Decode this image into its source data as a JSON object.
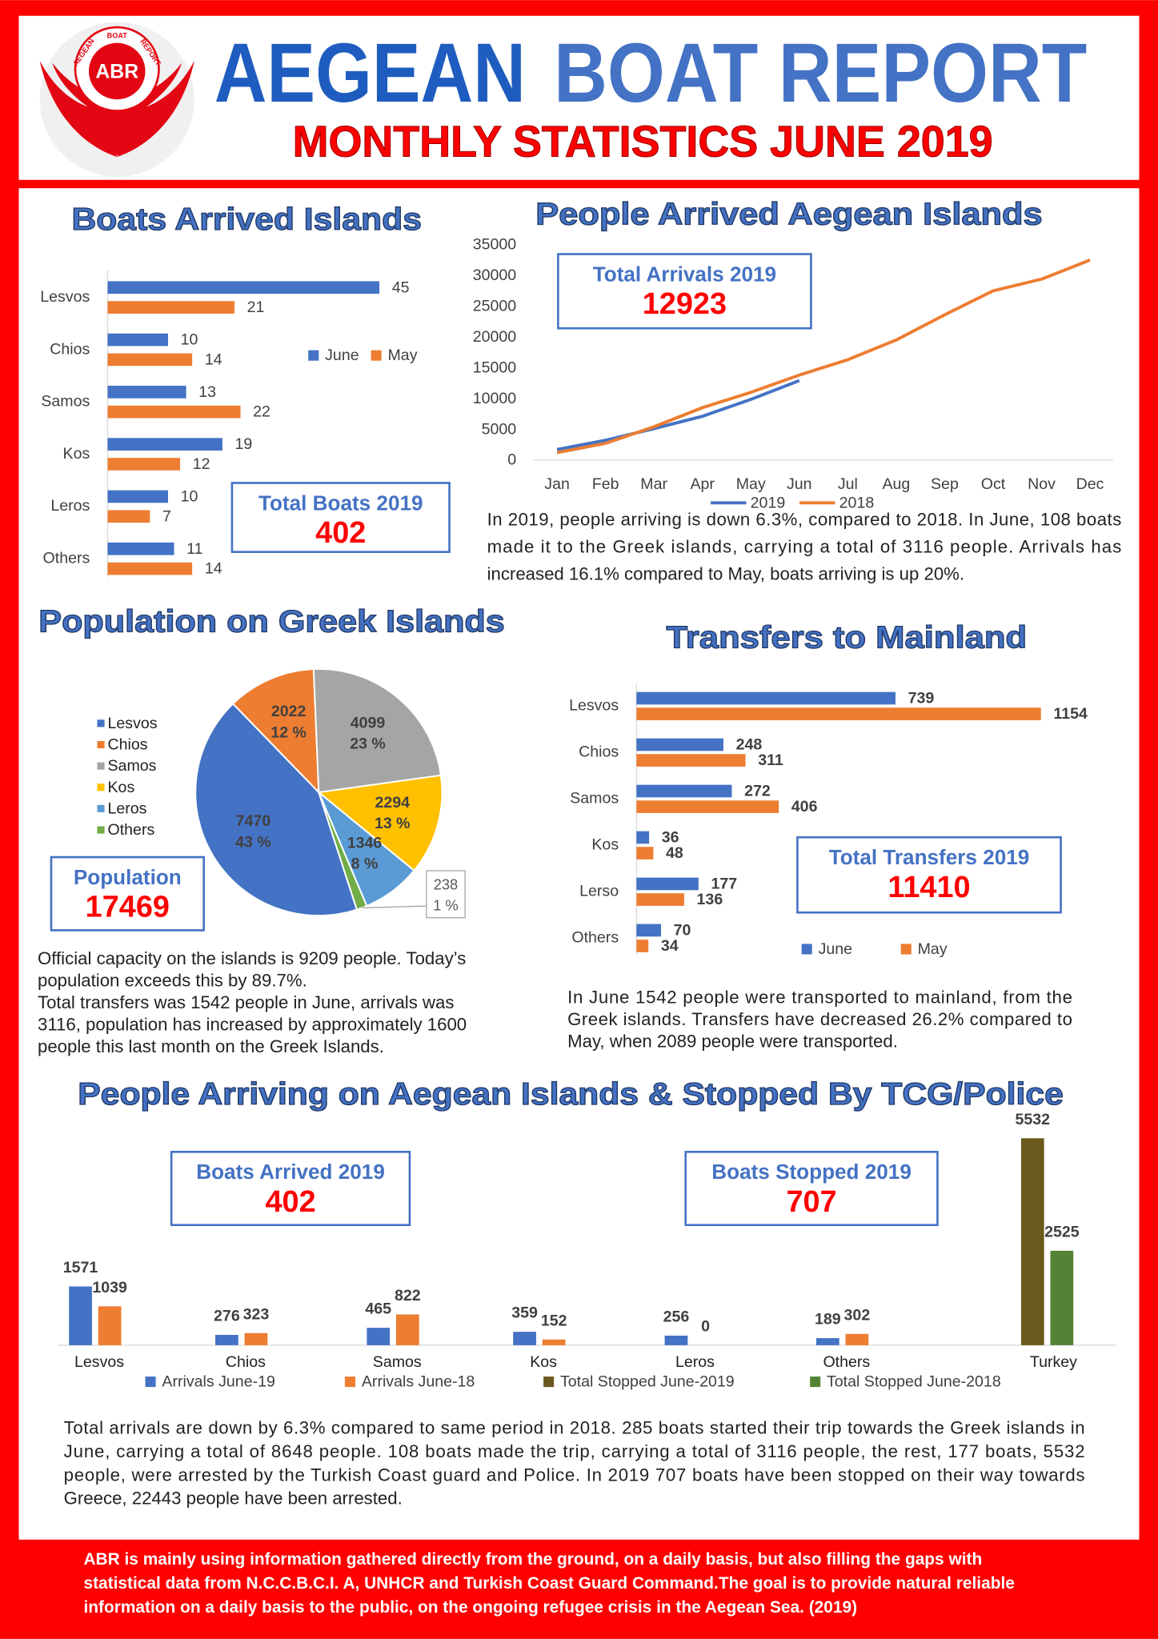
{
  "header": {
    "logo": {
      "abbr": "ABR",
      "ring": [
        "AEGEAN",
        "BOAT",
        "REPORT"
      ]
    },
    "title_main": "AEGEAN",
    "title_rest": "BOAT REPORT",
    "subtitle": "MONTHLY STATISTICS JUNE 2019"
  },
  "chart_data": [
    {
      "type": "bar",
      "orientation": "horizontal",
      "title": "Boats Arrived Islands",
      "categories": [
        "Lesvos",
        "Chios",
        "Samos",
        "Kos",
        "Leros",
        "Others"
      ],
      "series": [
        {
          "name": "June",
          "color": "#4472c4",
          "values": [
            45,
            10,
            13,
            19,
            10,
            11
          ]
        },
        {
          "name": "May",
          "color": "#ed7d31",
          "values": [
            21,
            14,
            22,
            12,
            7,
            14
          ]
        }
      ],
      "boxes": [
        {
          "label": "Total Boats 2019",
          "value": 402
        }
      ]
    },
    {
      "type": "line",
      "title": "People Arrived Aegean Islands",
      "categories": [
        "Jan",
        "Feb",
        "Mar",
        "Apr",
        "May",
        "Jun",
        "Jul",
        "Aug",
        "Sep",
        "Oct",
        "Nov",
        "Dec"
      ],
      "series": [
        {
          "name": "2019",
          "color": "#4472c4",
          "values": [
            1700,
            3200,
            5100,
            7100,
            9850,
            12900,
            null,
            null,
            null,
            null,
            null,
            null
          ]
        },
        {
          "name": "2018",
          "color": "#ed7d31",
          "values": [
            1200,
            2700,
            5400,
            8500,
            11000,
            13800,
            16300,
            19500,
            23600,
            27500,
            29400,
            32500
          ]
        }
      ],
      "ylim": [
        0,
        35000
      ],
      "yticks": [
        0,
        5000,
        10000,
        15000,
        20000,
        25000,
        30000,
        35000
      ],
      "grid": false,
      "boxes": [
        {
          "label": "Total Arrivals 2019",
          "value": 12923
        }
      ],
      "text": [
        "In 2019, people arriving is down 6.3%, compared to 2018. In June, 108 boats",
        "made it to the Greek islands, carrying a total of 3116 people. Arrivals has",
        "increased 16.1% compared to May, boats arriving is up 20%."
      ]
    },
    {
      "type": "pie",
      "title": "Population on Greek Islands",
      "categories": [
        "Lesvos",
        "Chios",
        "Samos",
        "Kos",
        "Leros",
        "Others"
      ],
      "values": [
        7470,
        2022,
        4099,
        2294,
        1346,
        238
      ],
      "percent_labels": [
        "43 %",
        "12 %",
        "23 %",
        "13 %",
        "8 %",
        "1 %"
      ],
      "colors": [
        "#4472c4",
        "#ed7d31",
        "#a5a5a5",
        "#ffc000",
        "#5b9bd5",
        "#70ad47"
      ],
      "boxes": [
        {
          "label": "Population",
          "value": 17469
        }
      ],
      "text": [
        "Official capacity on the islands is 9209 people. Today’s",
        "population exceeds this by 89.7%.",
        "Total transfers was 1542 people in June, arrivals was",
        "3116, population has increased by approximately 1600",
        "people this last month on the Greek Islands."
      ]
    },
    {
      "type": "bar",
      "orientation": "horizontal",
      "title": "Transfers to Mainland",
      "categories": [
        "Lesvos",
        "Chios",
        "Samos",
        "Kos",
        "Lerso",
        "Others"
      ],
      "series": [
        {
          "name": "June",
          "color": "#4472c4",
          "values": [
            739,
            248,
            272,
            36,
            177,
            70
          ]
        },
        {
          "name": "May",
          "color": "#ed7d31",
          "values": [
            1154,
            311,
            406,
            48,
            136,
            34
          ]
        }
      ],
      "boxes": [
        {
          "label": "Total Transfers 2019",
          "value": 11410
        }
      ],
      "text": [
        "In June 1542 people were transported to mainland, from the",
        "Greek islands. Transfers have decreased 26.2% compared to",
        "May, when 2089 people were transported."
      ]
    },
    {
      "type": "bar",
      "orientation": "vertical",
      "title": "People Arriving on Aegean Islands & Stopped By TCG/Police",
      "categories": [
        "Lesvos",
        "Chios",
        "Samos",
        "Kos",
        "Leros",
        "Others",
        "Turkey"
      ],
      "series": [
        {
          "name": "Arrivals June-19",
          "color": "#4472c4",
          "values": [
            1571,
            276,
            465,
            359,
            256,
            189,
            null
          ]
        },
        {
          "name": "Arrivals June-18",
          "color": "#ed7d31",
          "values": [
            1039,
            323,
            822,
            152,
            0,
            302,
            null
          ]
        },
        {
          "name": "Total Stopped June-2019",
          "color": "#6b5a1e",
          "values": [
            null,
            null,
            null,
            null,
            null,
            null,
            5532
          ]
        },
        {
          "name": "Total Stopped June-2018",
          "color": "#548235",
          "values": [
            null,
            null,
            null,
            null,
            null,
            null,
            2525
          ]
        }
      ],
      "boxes": [
        {
          "label": "Boats Arrived 2019",
          "value": 402
        },
        {
          "label": "Boats Stopped 2019",
          "value": 707
        }
      ],
      "text": [
        "Total arrivals are down by 6.3% compared to same period in 2018. 285 boats started their trip towards the Greek islands in",
        "June, carrying a total of 8648 people. 108 boats made the trip, carrying a total of 3116 people, the rest, 177 boats, 5532",
        "people, were arrested by the Turkish Coast guard and Police. In 2019 707 boats have been stopped on their way towards",
        "Greece, 22443 people have been arrested."
      ]
    }
  ],
  "footer": {
    "lines": [
      "ABR is mainly using information gathered directly from the ground, on a daily basis, but also filling the gaps with",
      "statistical data from N.C.C.B.C.I. A, UNHCR and Turkish Coast Guard Command.The goal is to provide natural reliable",
      "information on a daily basis to the public, on the ongoing refugee crisis in the Aegean Sea. (2019)"
    ]
  }
}
